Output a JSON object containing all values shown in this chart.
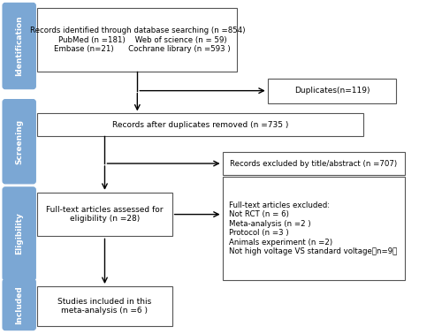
{
  "bg_color": "#ffffff",
  "sidebar_color": "#7BA7D4",
  "sidebar_text_color": "#ffffff",
  "box_edge_color": "#555555",
  "arrow_color": "#000000",
  "box1_text": "Records identified through database searching (n =854)\n    PubMed (n =181)    Web of science (n = 59)\n    Embase (n=21)      Cochrane library (n =593 )",
  "box2_text": "Duplicates(n=119)",
  "box3_text": "Records after duplicates removed (n =735 )",
  "box4_text": "Records excluded by title/abstract (n =707)",
  "box5_text": "Full-text articles assessed for\neligibility (n =28)",
  "box6_text": "Full-text articles excluded:\nNot RCT (n = 6)\nMeta-analysis (n =2 )\nProtocol (n =3 )\nAnimals experiment (n =2)\nNot high voltage VS standard voltage（n=9）",
  "box7_text": "Studies included in this\nmeta-analysis (n =6 )",
  "sidebar_labels": [
    "Identification",
    "Screening",
    "Eligibility",
    "Included"
  ]
}
